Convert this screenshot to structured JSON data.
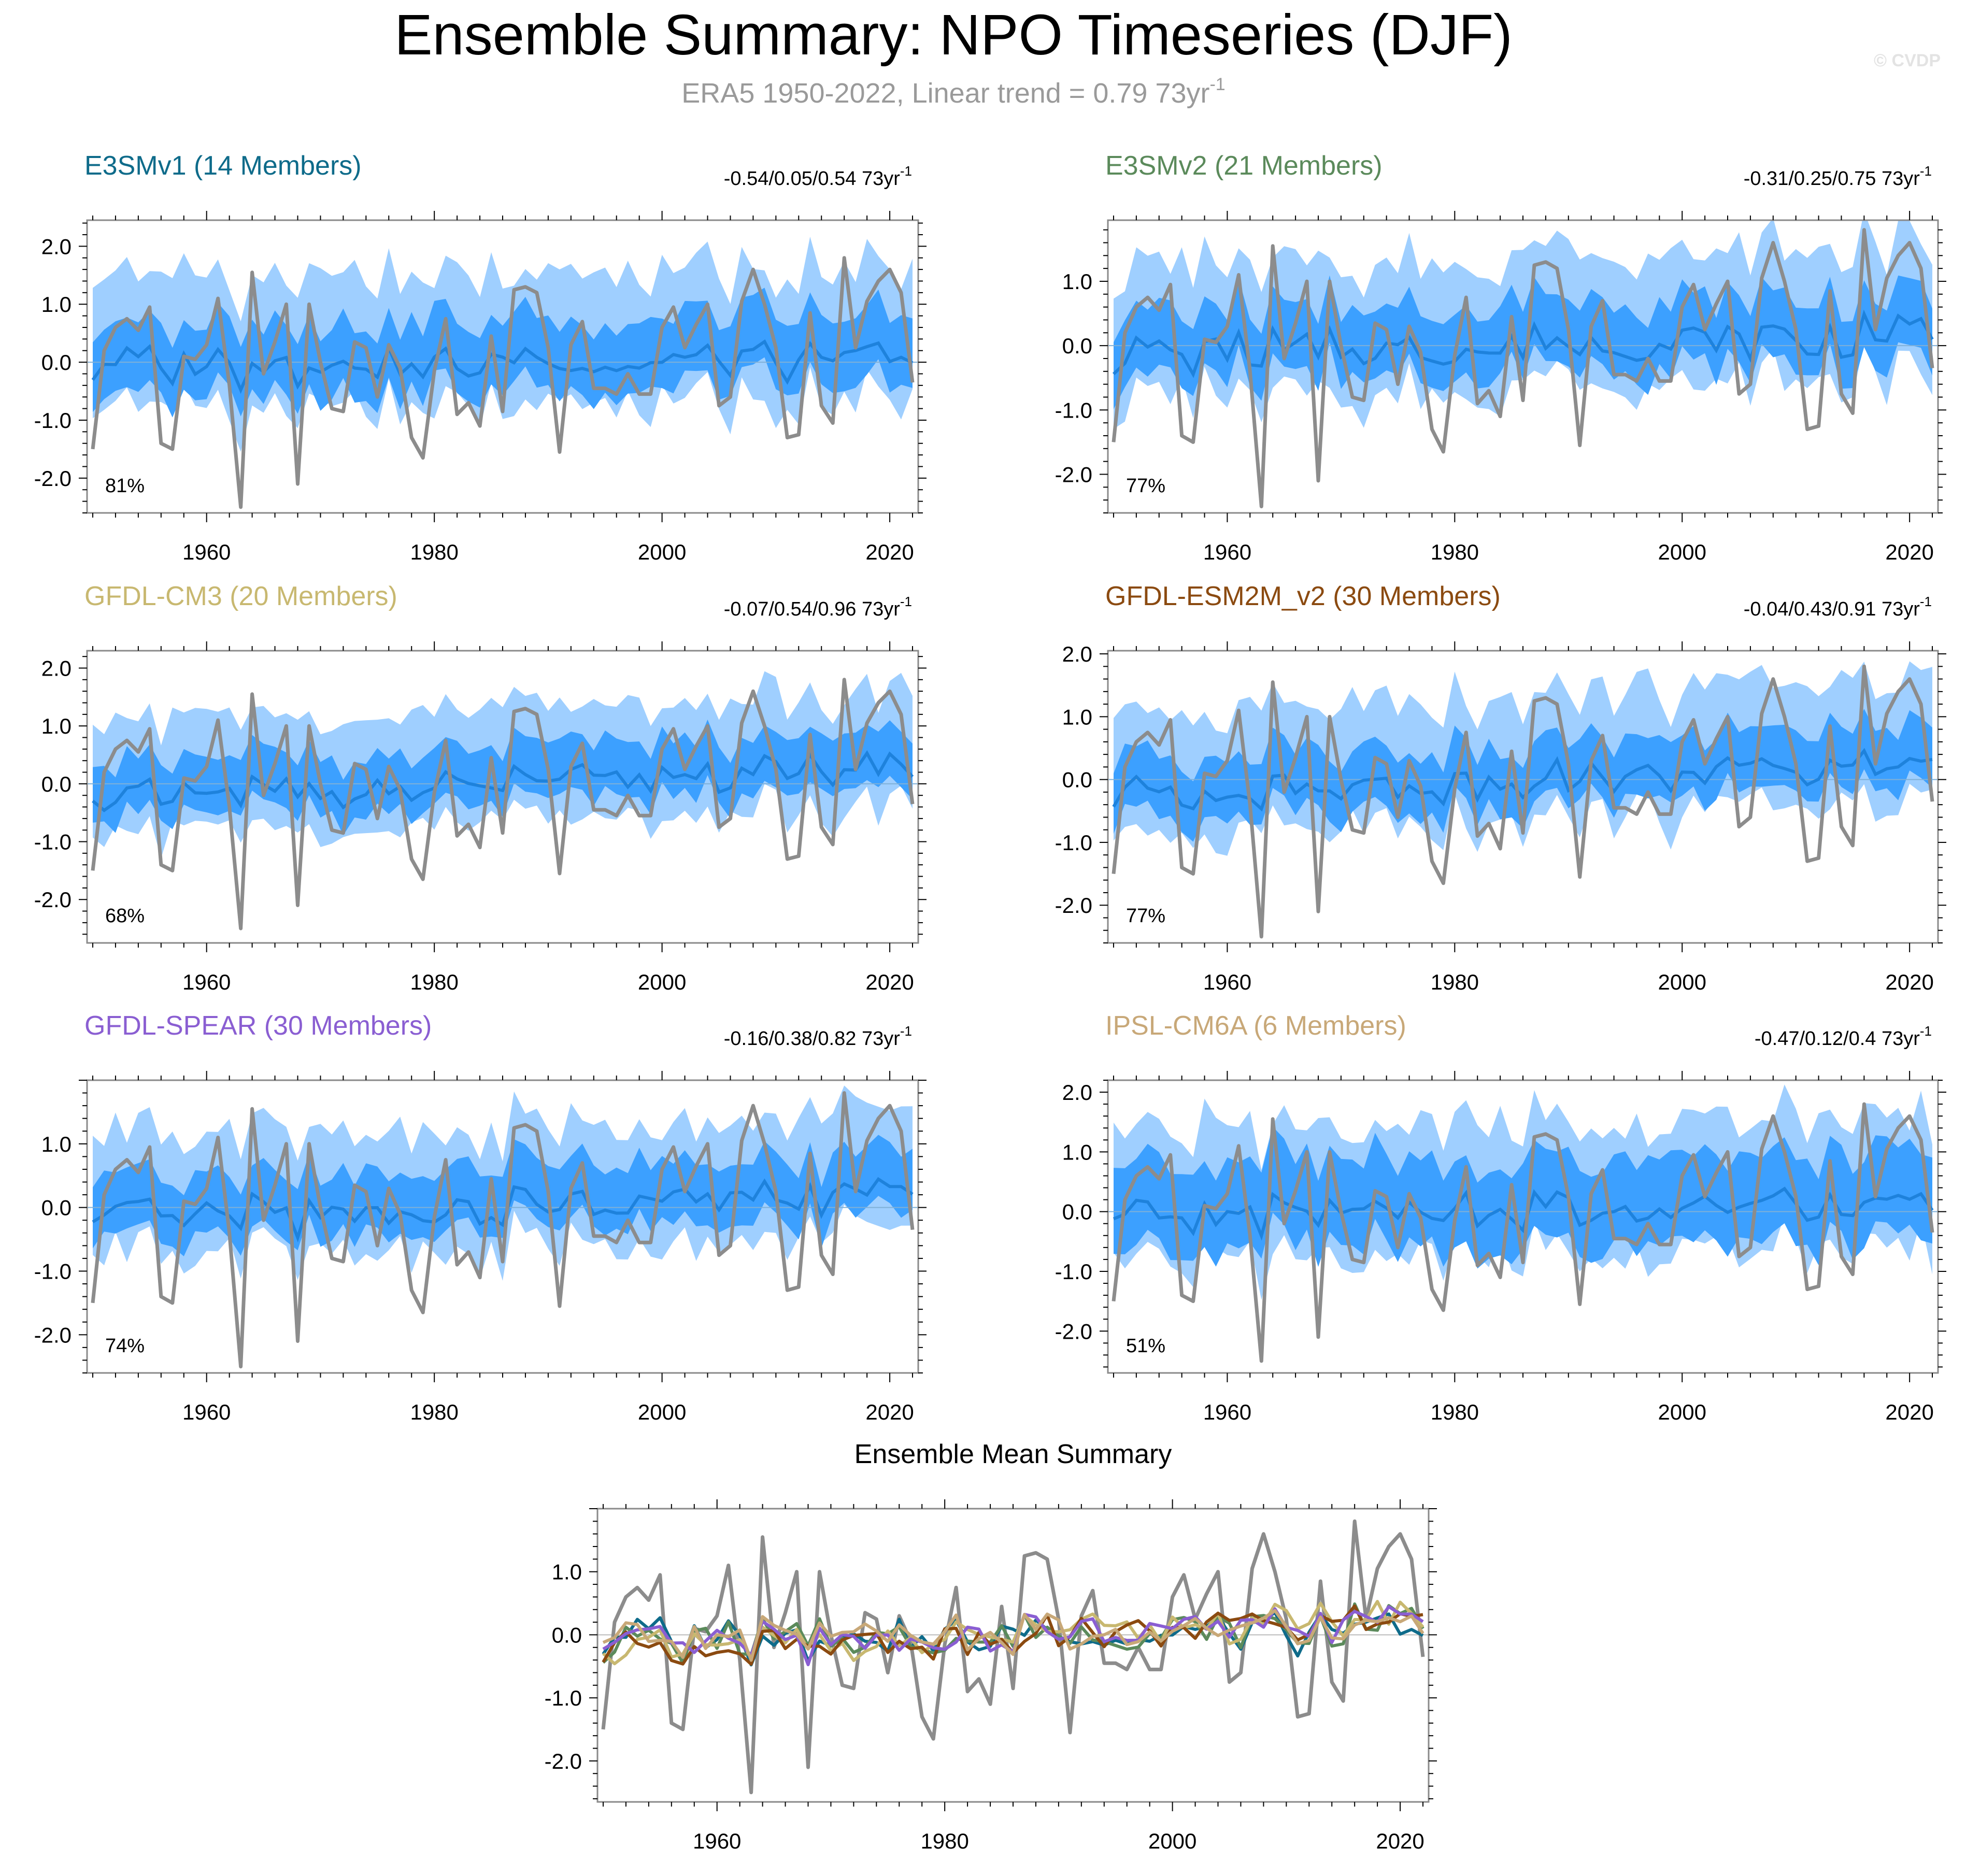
{
  "figure": {
    "title": "Ensemble Summary: NPO Timeseries (DJF)",
    "subtitle": "ERA5 1950-2022, Linear trend = 0.79 73yr",
    "subtitle_sup": "-1",
    "watermark": "© CVDP"
  },
  "colors": {
    "outer_band": "#9fcfff",
    "inner_band": "#3ca0ff",
    "ens_mean": "#1e82dc",
    "obs": "#8c8c8c",
    "frame": "#8a8a8a"
  },
  "chart_data": [
    {
      "type": "area",
      "title": "E3SMv1 (14 Members)",
      "title_color": "#0e6b8a",
      "trend": "-0.54/0.05/0.54 73yr",
      "trend_sup": "-1",
      "pct": "81%",
      "ylim": [
        -2.6,
        2.45
      ],
      "yticks": [
        "2.0",
        "1.0",
        "0.0",
        "-1.0",
        "-2.0"
      ],
      "xticks": [
        "1960",
        "1980",
        "2000",
        "2020"
      ],
      "xrange": [
        1949.5,
        2022.5
      ]
    },
    {
      "type": "area",
      "title": "E3SMv2 (21 Members)",
      "title_color": "#5b8a5b",
      "trend": "-0.31/0.25/0.75 73yr",
      "trend_sup": "-1",
      "pct": "77%",
      "ylim": [
        -2.6,
        1.95
      ],
      "yticks": [
        "1.0",
        "0.0",
        "-1.0",
        "-2.0"
      ],
      "xticks": [
        "1960",
        "1980",
        "2000",
        "2020"
      ],
      "xrange": [
        1949.5,
        2022.5
      ]
    },
    {
      "type": "area",
      "title": "GFDL-CM3 (20 Members)",
      "title_color": "#c8b870",
      "trend": "-0.07/0.54/0.96 73yr",
      "trend_sup": "-1",
      "pct": "68%",
      "ylim": [
        -2.75,
        2.3
      ],
      "yticks": [
        "2.0",
        "1.0",
        "0.0",
        "-1.0",
        "-2.0"
      ],
      "xticks": [
        "1960",
        "1980",
        "2000",
        "2020"
      ],
      "xrange": [
        1949.5,
        2022.5
      ]
    },
    {
      "type": "area",
      "title": "GFDL-ESM2M_v2 (30 Members)",
      "title_color": "#8b4a10",
      "trend": "-0.04/0.43/0.91 73yr",
      "trend_sup": "-1",
      "pct": "77%",
      "ylim": [
        -2.6,
        2.05
      ],
      "yticks": [
        "2.0",
        "1.0",
        "0.0",
        "-1.0",
        "-2.0"
      ],
      "xticks": [
        "1960",
        "1980",
        "2000",
        "2020"
      ],
      "xrange": [
        1949.5,
        2022.5
      ]
    },
    {
      "type": "area",
      "title": "GFDL-SPEAR (30 Members)",
      "title_color": "#8a5ed2",
      "trend": "-0.16/0.38/0.82 73yr",
      "trend_sup": "-1",
      "pct": "74%",
      "ylim": [
        -2.6,
        2.0
      ],
      "yticks": [
        "1.0",
        "0.0",
        "-1.0",
        "-2.0"
      ],
      "xticks": [
        "1960",
        "1980",
        "2000",
        "2020"
      ],
      "xrange": [
        1949.5,
        2022.5
      ]
    },
    {
      "type": "area",
      "title": "IPSL-CM6A (6 Members)",
      "title_color": "#c8a878",
      "trend": "-0.47/0.12/0.4 73yr",
      "trend_sup": "-1",
      "pct": "51%",
      "ylim": [
        -2.7,
        2.2
      ],
      "yticks": [
        "2.0",
        "1.0",
        "0.0",
        "-1.0",
        "-2.0"
      ],
      "xticks": [
        "1960",
        "1980",
        "2000",
        "2020"
      ],
      "xrange": [
        1949.5,
        2022.5
      ]
    },
    {
      "type": "line",
      "title": "Ensemble Mean Summary",
      "title_color": "#000000",
      "ylim": [
        -2.65,
        2.0
      ],
      "yticks": [
        "1.0",
        "0.0",
        "-1.0",
        "-2.0"
      ],
      "xticks": [
        "1960",
        "1980",
        "2000",
        "2020"
      ],
      "xrange": [
        1949.5,
        2022.5
      ],
      "series": [
        {
          "name": "ERA5",
          "color": "#8c8c8c"
        },
        {
          "name": "E3SMv1",
          "color": "#0e6b8a"
        },
        {
          "name": "E3SMv2",
          "color": "#5b8a5b"
        },
        {
          "name": "GFDL-CM3",
          "color": "#c8b870"
        },
        {
          "name": "GFDL-ESM2M_v2",
          "color": "#8b4a10"
        },
        {
          "name": "GFDL-SPEAR",
          "color": "#8a5ed2"
        },
        {
          "name": "IPSL-CM6A",
          "color": "#c8a878"
        }
      ]
    }
  ],
  "obs_series": {
    "name": "ERA5 NPO (DJF), 1950-2022",
    "values": [
      -1.5,
      0.2,
      0.6,
      0.75,
      0.55,
      0.95,
      -1.4,
      -1.5,
      0.1,
      0.05,
      0.3,
      1.1,
      -0.4,
      -2.5,
      1.55,
      -0.2,
      0.35,
      1.0,
      -2.1,
      1.0,
      0.0,
      -0.8,
      -0.85,
      0.35,
      0.25,
      -0.6,
      0.3,
      -0.1,
      -1.3,
      -1.65,
      -0.15,
      0.75,
      -0.9,
      -0.7,
      -1.1,
      0.45,
      -0.85,
      1.25,
      1.3,
      1.2,
      0.25,
      -1.55,
      0.3,
      0.7,
      -0.45,
      -0.45,
      -0.55,
      -0.2,
      -0.55,
      -0.55,
      0.6,
      0.95,
      0.25,
      0.65,
      1.0,
      -0.75,
      -0.6,
      1.05,
      1.6,
      1.0,
      0.25,
      -1.3,
      -1.25,
      0.85,
      -0.75,
      -1.05,
      1.8,
      0.25,
      1.05,
      1.4,
      1.6,
      1.2,
      -0.35
    ]
  }
}
